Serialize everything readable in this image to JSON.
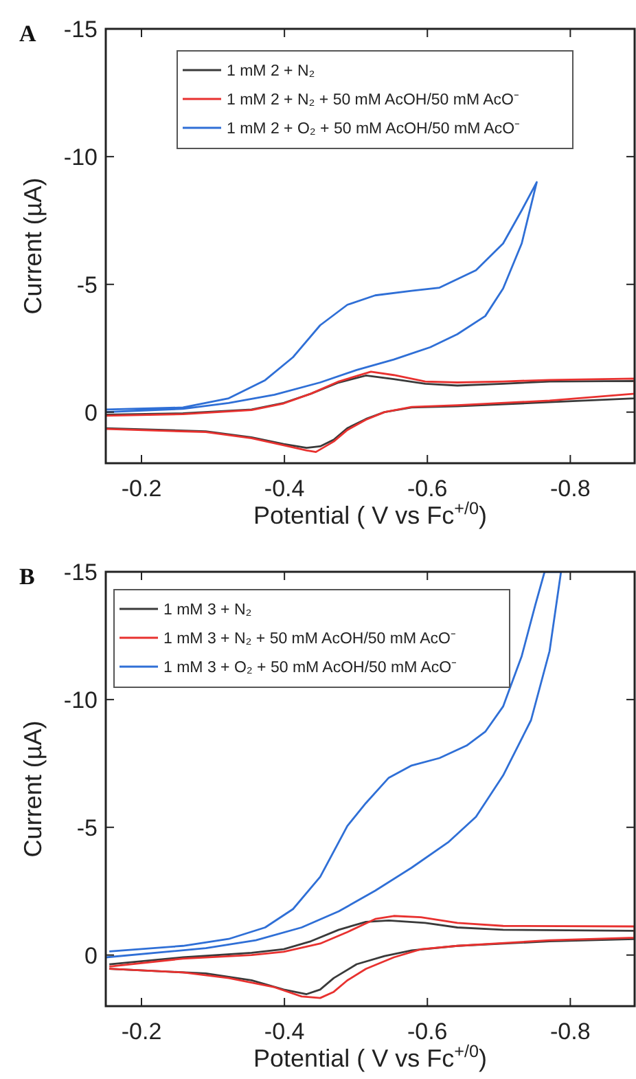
{
  "chart_data": [
    {
      "type": "line",
      "title": "A",
      "xlabel": "Potential ( V vs Fc$^{+/0}$)",
      "ylabel": "Current (µA)",
      "xlim": [
        -0.15,
        -0.89
      ],
      "ylim": [
        2,
        -15
      ],
      "xticks": [
        -0.2,
        -0.4,
        -0.6,
        -0.8
      ],
      "yticks": [
        0,
        -5,
        -10,
        -15
      ],
      "legend": "top",
      "grid": false,
      "series": [
        {
          "name": "1 mM 2 + N₂",
          "color": "#3a3a3a",
          "x": [
            -0.15,
            -0.258,
            -0.354,
            -0.399,
            -0.437,
            -0.476,
            -0.514,
            -0.553,
            -0.597,
            -0.642,
            -0.706,
            -0.771,
            -0.89,
            -0.89,
            -0.771,
            -0.642,
            -0.578,
            -0.54,
            -0.514,
            -0.488,
            -0.469,
            -0.45,
            -0.431,
            -0.399,
            -0.354,
            -0.29,
            -0.15
          ],
          "values": [
            0.1,
            0.05,
            -0.1,
            -0.36,
            -0.72,
            -1.16,
            -1.43,
            -1.29,
            -1.11,
            -1.04,
            -1.11,
            -1.2,
            -1.22,
            -0.54,
            -0.39,
            -0.23,
            -0.18,
            0,
            0.27,
            0.63,
            1.08,
            1.34,
            1.4,
            1.25,
            0.99,
            0.75,
            0.63
          ]
        },
        {
          "name": "1 mM 2 + N₂ + 50 mM AcOH/50 mM AcO⁻",
          "color": "#e8312f",
          "x": [
            -0.15,
            -0.258,
            -0.354,
            -0.399,
            -0.437,
            -0.476,
            -0.521,
            -0.553,
            -0.597,
            -0.642,
            -0.706,
            -0.771,
            -0.89,
            -0.89,
            -0.771,
            -0.642,
            -0.578,
            -0.54,
            -0.514,
            -0.488,
            -0.469,
            -0.444,
            -0.431,
            -0.399,
            -0.354,
            -0.29,
            -0.15
          ],
          "values": [
            0.14,
            0.08,
            -0.08,
            -0.34,
            -0.72,
            -1.2,
            -1.58,
            -1.45,
            -1.2,
            -1.16,
            -1.2,
            -1.26,
            -1.31,
            -0.72,
            -0.45,
            -0.27,
            -0.2,
            0,
            0.3,
            0.7,
            1.15,
            1.56,
            1.5,
            1.3,
            1.02,
            0.78,
            0.66
          ]
        },
        {
          "name": "1 mM 2 + O₂ + 50 mM AcOH/50 mM AcO⁻",
          "color": "#2f6fd6",
          "x": [
            -0.15,
            -0.258,
            -0.322,
            -0.373,
            -0.412,
            -0.45,
            -0.488,
            -0.527,
            -0.578,
            -0.617,
            -0.668,
            -0.706,
            -0.732,
            -0.753,
            -0.732,
            -0.706,
            -0.681,
            -0.642,
            -0.604,
            -0.553,
            -0.501,
            -0.45,
            -0.386,
            -0.322,
            -0.258,
            -0.15
          ],
          "values": [
            -0.1,
            -0.18,
            -0.54,
            -1.25,
            -2.15,
            -3.4,
            -4.2,
            -4.57,
            -4.75,
            -4.87,
            -5.55,
            -6.6,
            -7.9,
            -9.0,
            -6.6,
            -4.84,
            -3.76,
            -3.05,
            -2.54,
            -2.06,
            -1.65,
            -1.16,
            -0.68,
            -0.36,
            -0.13,
            0
          ]
        }
      ]
    },
    {
      "type": "line",
      "title": "B",
      "xlabel": "Potential ( V vs Fc$^{+/0}$)",
      "ylabel": "Current (µA)",
      "xlim": [
        -0.15,
        -0.89
      ],
      "ylim": [
        2,
        -15
      ],
      "xticks": [
        -0.2,
        -0.4,
        -0.6,
        -0.8
      ],
      "yticks": [
        0,
        -5,
        -10,
        -15
      ],
      "legend": "top left",
      "grid": false,
      "series": [
        {
          "name": "1 mM 3 + N₂",
          "color": "#3a3a3a",
          "x": [
            -0.155,
            -0.258,
            -0.354,
            -0.399,
            -0.437,
            -0.476,
            -0.514,
            -0.546,
            -0.597,
            -0.642,
            -0.706,
            -0.89,
            -0.89,
            -0.771,
            -0.642,
            -0.578,
            -0.54,
            -0.501,
            -0.469,
            -0.45,
            -0.431,
            -0.399,
            -0.354,
            -0.29,
            -0.155
          ],
          "values": [
            0.36,
            0.09,
            -0.09,
            -0.23,
            -0.54,
            -0.99,
            -1.3,
            -1.35,
            -1.26,
            -1.08,
            -0.99,
            -0.95,
            -0.63,
            -0.54,
            -0.36,
            -0.18,
            0.04,
            0.36,
            0.9,
            1.35,
            1.53,
            1.35,
            0.99,
            0.72,
            0.54
          ]
        },
        {
          "name": "1 mM 3 + N₂ + 50 mM AcOH/50 mM AcO⁻",
          "color": "#e8312f",
          "x": [
            -0.155,
            -0.258,
            -0.354,
            -0.399,
            -0.45,
            -0.488,
            -0.527,
            -0.553,
            -0.591,
            -0.642,
            -0.706,
            -0.89,
            -0.89,
            -0.771,
            -0.642,
            -0.591,
            -0.553,
            -0.514,
            -0.488,
            -0.469,
            -0.45,
            -0.424,
            -0.386,
            -0.322,
            -0.258,
            -0.155
          ],
          "values": [
            0.45,
            0.14,
            0,
            -0.13,
            -0.45,
            -0.9,
            -1.41,
            -1.53,
            -1.48,
            -1.26,
            -1.14,
            -1.12,
            -0.68,
            -0.58,
            -0.36,
            -0.23,
            0.09,
            0.54,
            0.99,
            1.44,
            1.68,
            1.62,
            1.26,
            0.9,
            0.68,
            0.54
          ]
        },
        {
          "name": "1 mM 3 + O₂ + 50 mM AcOH/50 mM AcO⁻",
          "color": "#2f6fd6",
          "x": [
            -0.155,
            -0.258,
            -0.322,
            -0.373,
            -0.412,
            -0.45,
            -0.488,
            -0.514,
            -0.546,
            -0.578,
            -0.617,
            -0.655,
            -0.681,
            -0.706,
            -0.732,
            -0.751,
            -0.764,
            -0.787,
            -0.771,
            -0.745,
            -0.706,
            -0.668,
            -0.629,
            -0.578,
            -0.527,
            -0.476,
            -0.424,
            -0.36,
            -0.29,
            -0.15
          ],
          "values": [
            -0.14,
            -0.36,
            -0.63,
            -1.08,
            -1.8,
            -3.06,
            -5.05,
            -5.95,
            -6.94,
            -7.42,
            -7.71,
            -8.2,
            -8.74,
            -9.73,
            -11.7,
            -13.7,
            -15,
            -15,
            -11.9,
            -9.19,
            -7.03,
            -5.41,
            -4.41,
            -3.42,
            -2.52,
            -1.71,
            -1.08,
            -0.58,
            -0.27,
            0.09
          ]
        }
      ]
    }
  ]
}
